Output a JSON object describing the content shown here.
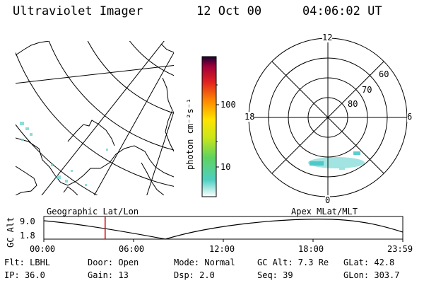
{
  "header": {
    "title": "Ultraviolet Imager",
    "date": "12 Oct 00",
    "time": "04:06:02 UT"
  },
  "colorbar": {
    "unit_label": "photon cm⁻²s⁻¹",
    "ticks": [
      "100",
      "10"
    ]
  },
  "map_labels": {
    "left": "Geographic Lat/Lon",
    "right": "Apex MLat/MLT"
  },
  "polar_plot": {
    "mlt_labels": [
      "12",
      "18",
      "6",
      "0"
    ],
    "lat_labels": [
      "60",
      "70",
      "80"
    ]
  },
  "altitude_plot": {
    "ylabel": "GC Alt",
    "yticks": [
      "9.0",
      "1.8"
    ],
    "xticks": [
      "00:00",
      "06:00",
      "12:00",
      "18:00",
      "23:59"
    ],
    "current_time_hours": 4.1
  },
  "info": {
    "row1": [
      "Flt: LBHL",
      "Door: Open",
      "Mode: Normal",
      "GC Alt: 7.3 Re",
      "GLat:  42.8"
    ],
    "row2": [
      "IP: 36.0",
      "Gain: 13",
      "Dsp:   2.0",
      "Seq: 39",
      "GLon: 303.7"
    ]
  },
  "colors": {
    "marker": "#d00000",
    "aurora": "#4ec8c8"
  }
}
